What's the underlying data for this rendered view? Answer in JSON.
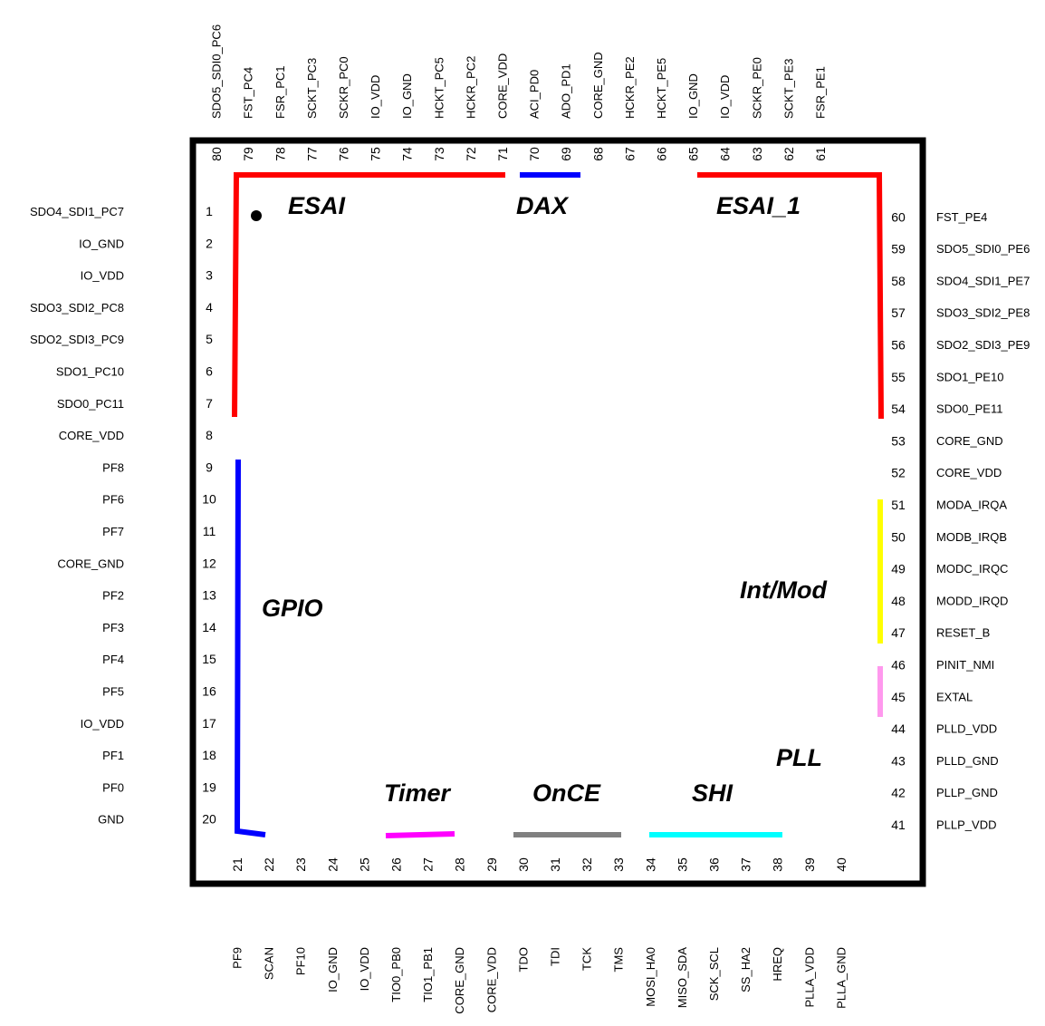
{
  "colors": {
    "outline": "#000000",
    "esai": "#ff0000",
    "dax": "#0000ff",
    "gpio": "#0000ff",
    "timer": "#ff00ff",
    "once": "#808080",
    "shi": "#00ffff",
    "intmod": "#ffff00",
    "pll": "#ff99ee"
  },
  "groups": [
    {
      "name": "ESAI",
      "color_key": "esai"
    },
    {
      "name": "DAX",
      "color_key": "dax"
    },
    {
      "name": "ESAI_1",
      "color_key": "esai"
    },
    {
      "name": "GPIO",
      "color_key": "gpio"
    },
    {
      "name": "Int/Mod",
      "color_key": "intmod"
    },
    {
      "name": "PLL",
      "color_key": "pll"
    },
    {
      "name": "Timer",
      "color_key": "timer"
    },
    {
      "name": "OnCE",
      "color_key": "once"
    },
    {
      "name": "SHI",
      "color_key": "shi"
    }
  ],
  "pins": {
    "left": [
      {
        "num": "1",
        "name": "SDO4_SDI1_PC7"
      },
      {
        "num": "2",
        "name": "IO_GND"
      },
      {
        "num": "3",
        "name": "IO_VDD"
      },
      {
        "num": "4",
        "name": "SDO3_SDI2_PC8"
      },
      {
        "num": "5",
        "name": "SDO2_SDI3_PC9"
      },
      {
        "num": "6",
        "name": "SDO1_PC10"
      },
      {
        "num": "7",
        "name": "SDO0_PC11"
      },
      {
        "num": "8",
        "name": "CORE_VDD"
      },
      {
        "num": "9",
        "name": "PF8"
      },
      {
        "num": "10",
        "name": "PF6"
      },
      {
        "num": "11",
        "name": "PF7"
      },
      {
        "num": "12",
        "name": "CORE_GND"
      },
      {
        "num": "13",
        "name": "PF2"
      },
      {
        "num": "14",
        "name": "PF3"
      },
      {
        "num": "15",
        "name": "PF4"
      },
      {
        "num": "16",
        "name": "PF5"
      },
      {
        "num": "17",
        "name": "IO_VDD"
      },
      {
        "num": "18",
        "name": "PF1"
      },
      {
        "num": "19",
        "name": "PF0"
      },
      {
        "num": "20",
        "name": "GND"
      }
    ],
    "bottom": [
      {
        "num": "21",
        "name": "PF9"
      },
      {
        "num": "22",
        "name": "SCAN"
      },
      {
        "num": "23",
        "name": "PF10"
      },
      {
        "num": "24",
        "name": "IO_GND"
      },
      {
        "num": "25",
        "name": "IO_VDD"
      },
      {
        "num": "26",
        "name": "TIO0_PB0"
      },
      {
        "num": "27",
        "name": "TIO1_PB1"
      },
      {
        "num": "28",
        "name": "CORE_GND"
      },
      {
        "num": "29",
        "name": "CORE_VDD"
      },
      {
        "num": "30",
        "name": "TDO"
      },
      {
        "num": "31",
        "name": "TDI"
      },
      {
        "num": "32",
        "name": "TCK"
      },
      {
        "num": "33",
        "name": "TMS"
      },
      {
        "num": "34",
        "name": "MOSI_HA0"
      },
      {
        "num": "35",
        "name": "MISO_SDA"
      },
      {
        "num": "36",
        "name": "SCK_SCL"
      },
      {
        "num": "37",
        "name": "SS_HA2"
      },
      {
        "num": "38",
        "name": "HREQ"
      },
      {
        "num": "39",
        "name": "PLLA_VDD"
      },
      {
        "num": "40",
        "name": "PLLA_GND"
      }
    ],
    "right": [
      {
        "num": "41",
        "name": "PLLP_VDD"
      },
      {
        "num": "42",
        "name": "PLLP_GND"
      },
      {
        "num": "43",
        "name": "PLLD_GND"
      },
      {
        "num": "44",
        "name": "PLLD_VDD"
      },
      {
        "num": "45",
        "name": "EXTAL"
      },
      {
        "num": "46",
        "name": "PINIT_NMI"
      },
      {
        "num": "47",
        "name": "RESET_B"
      },
      {
        "num": "48",
        "name": "MODD_IRQD"
      },
      {
        "num": "49",
        "name": "MODC_IRQC"
      },
      {
        "num": "50",
        "name": "MODB_IRQB"
      },
      {
        "num": "51",
        "name": "MODA_IRQA"
      },
      {
        "num": "52",
        "name": "CORE_VDD"
      },
      {
        "num": "53",
        "name": "CORE_GND"
      },
      {
        "num": "54",
        "name": "SDO0_PE11"
      },
      {
        "num": "55",
        "name": "SDO1_PE10"
      },
      {
        "num": "56",
        "name": "SDO2_SDI3_PE9"
      },
      {
        "num": "57",
        "name": "SDO3_SDI2_PE8"
      },
      {
        "num": "58",
        "name": "SDO4_SDI1_PE7"
      },
      {
        "num": "59",
        "name": "SDO5_SDI0_PE6"
      },
      {
        "num": "60",
        "name": "FST_PE4"
      }
    ],
    "top": [
      {
        "num": "61",
        "name": "FSR_PE1"
      },
      {
        "num": "62",
        "name": "SCKT_PE3"
      },
      {
        "num": "63",
        "name": "SCKR_PE0"
      },
      {
        "num": "64",
        "name": "IO_VDD"
      },
      {
        "num": "65",
        "name": "IO_GND"
      },
      {
        "num": "66",
        "name": "HCKT_PE5"
      },
      {
        "num": "67",
        "name": "HCKR_PE2"
      },
      {
        "num": "68",
        "name": "CORE_GND"
      },
      {
        "num": "69",
        "name": "ADO_PD1"
      },
      {
        "num": "70",
        "name": "ACI_PD0"
      },
      {
        "num": "71",
        "name": "CORE_VDD"
      },
      {
        "num": "72",
        "name": "HCKR_PC2"
      },
      {
        "num": "73",
        "name": "HCKT_PC5"
      },
      {
        "num": "74",
        "name": "IO_GND"
      },
      {
        "num": "75",
        "name": "IO_VDD"
      },
      {
        "num": "76",
        "name": "SCKR_PC0"
      },
      {
        "num": "77",
        "name": "SCKT_PC3"
      },
      {
        "num": "78",
        "name": "FSR_PC1"
      },
      {
        "num": "79",
        "name": "FST_PC4"
      },
      {
        "num": "80",
        "name": "SDO5_SDI0_PC6"
      }
    ]
  }
}
